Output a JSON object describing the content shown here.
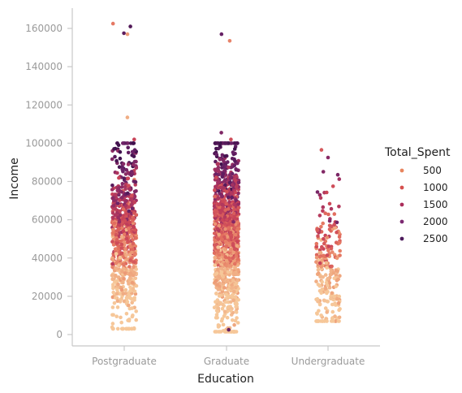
{
  "chart_data": {
    "type": "scatter",
    "subtype": "strip",
    "title": "",
    "xlabel": "Education",
    "ylabel": "Income",
    "categories": [
      "Postgraduate",
      "Graduate",
      "Undergraduate"
    ],
    "ylim": [
      -6000,
      172000
    ],
    "yticks": [
      0,
      20000,
      40000,
      60000,
      80000,
      100000,
      120000,
      140000,
      160000
    ],
    "grid": false,
    "legend": {
      "title": "Total_Spent",
      "placement": "right",
      "entries": [
        {
          "label": "500",
          "value": 500,
          "color": "#e8855e"
        },
        {
          "label": "1000",
          "value": 1000,
          "color": "#d6504e"
        },
        {
          "label": "1500",
          "value": 1500,
          "color": "#ab2d5a"
        },
        {
          "label": "2000",
          "value": 2000,
          "color": "#7d2a72"
        },
        {
          "label": "2500",
          "value": 2500,
          "color": "#4d1b5c"
        }
      ]
    },
    "colormap": {
      "domain": [
        0,
        2600
      ],
      "stops": [
        "#f6c89a",
        "#eea17a",
        "#e3715f",
        "#c94358",
        "#9d2f63",
        "#6a2267",
        "#3b0f4a"
      ]
    },
    "outliers": [
      {
        "category": "Postgraduate",
        "income": 157000,
        "total_spent": 500
      },
      {
        "category": "Postgraduate",
        "income": 162500,
        "total_spent": 800
      },
      {
        "category": "Postgraduate",
        "income": 161000,
        "total_spent": 2400
      },
      {
        "category": "Postgraduate",
        "income": 157500,
        "total_spent": 2300
      },
      {
        "category": "Postgraduate",
        "income": 113500,
        "total_spent": 300
      },
      {
        "category": "Postgraduate",
        "income": 102000,
        "total_spent": 1300
      },
      {
        "category": "Graduate",
        "income": 157000,
        "total_spent": 2200
      },
      {
        "category": "Graduate",
        "income": 153500,
        "total_spent": 700
      },
      {
        "category": "Graduate",
        "income": 105500,
        "total_spent": 2000
      },
      {
        "category": "Graduate",
        "income": 102000,
        "total_spent": 1200
      },
      {
        "category": "Graduate",
        "income": 2500,
        "total_spent": 2200
      },
      {
        "category": "Undergraduate",
        "income": 96500,
        "total_spent": 1100
      },
      {
        "category": "Undergraduate",
        "income": 92500,
        "total_spent": 1900
      }
    ],
    "distribution": [
      {
        "category": "Postgraduate",
        "count": 720,
        "income_range": [
          3000,
          100000
        ],
        "center": 50000
      },
      {
        "category": "Graduate",
        "count": 1100,
        "income_range": [
          1500,
          100000
        ],
        "center": 52000
      },
      {
        "category": "Undergraduate",
        "count": 250,
        "income_range": [
          7000,
          92000
        ],
        "center": 32000
      }
    ]
  }
}
